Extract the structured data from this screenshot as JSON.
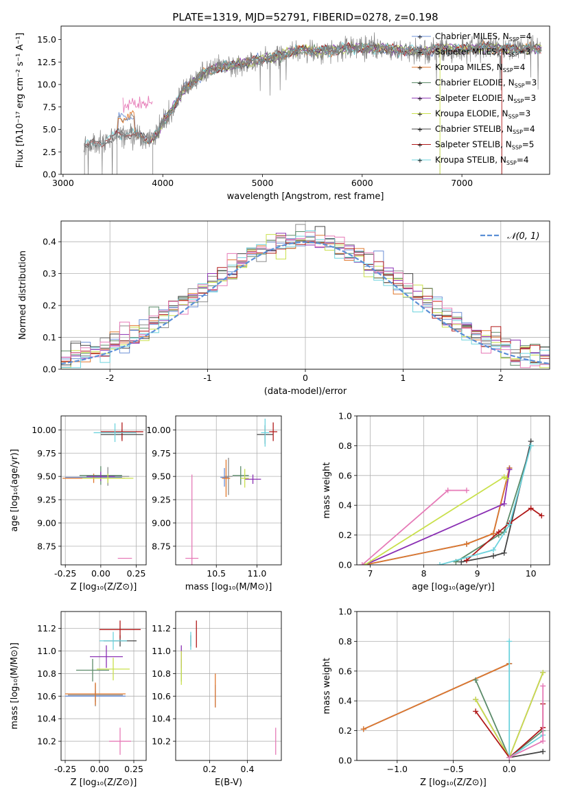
{
  "colors": {
    "Chabrier MILES": "#6b8fd6",
    "Salpeter MILES": "#8a8a8a",
    "Kroupa MILES": "#e0772c",
    "Chabrier ELODIE": "#5a8a68",
    "Salpeter ELODIE": "#8a2fb3",
    "Kroupa ELODIE": "#c9e04b",
    "Chabrier STELIB": "#444444",
    "Salpeter STELIB": "#b01818",
    "Kroupa STELIB": "#6dd3dd",
    "Normal": "#5b8fd6",
    "pink": "#e67ab7",
    "grid": "#b0b0b0"
  },
  "chart_data": [
    {
      "id": "spectrum",
      "type": "line",
      "title": "PLATE=1319, MJD=52791, FIBERID=0278, z=0.198",
      "xlabel": "wavelength [Angstrom, rest frame]",
      "ylabel": "Flux [fλ10⁻¹⁷ erg cm⁻² s⁻¹ A⁻¹]",
      "xlim": [
        2980,
        7880
      ],
      "ylim": [
        0,
        16.5
      ],
      "xticks": [
        3000,
        4000,
        5000,
        6000,
        7000
      ],
      "yticks": [
        0.0,
        2.5,
        5.0,
        7.5,
        10.0,
        12.5,
        15.0
      ],
      "grid": false,
      "legend_position": "top-right",
      "legend": [
        {
          "name": "Chabrier MILES",
          "nssp": "4"
        },
        {
          "name": "Salpeter MILES",
          "nssp": "3"
        },
        {
          "name": "Kroupa MILES",
          "nssp": "4"
        },
        {
          "name": "Chabrier ELODIE",
          "nssp": "3"
        },
        {
          "name": "Salpeter ELODIE",
          "nssp": "3"
        },
        {
          "name": "Kroupa ELODIE",
          "nssp": "3"
        },
        {
          "name": "Chabrier STELIB",
          "nssp": "4"
        },
        {
          "name": "Salpeter STELIB",
          "nssp": "5"
        },
        {
          "name": "Kroupa STELIB",
          "nssp": "4"
        }
      ],
      "continuum": {
        "wavelength": [
          3210,
          3400,
          3550,
          3700,
          3850,
          3950,
          4000,
          4100,
          4200,
          4400,
          4600,
          4800,
          5000,
          5200,
          5400,
          5600,
          5800,
          6000,
          6200,
          6400,
          6600,
          6800,
          7000,
          7200,
          7400,
          7800
        ],
        "flux": [
          3.2,
          3.6,
          4.4,
          4.5,
          3.8,
          4.5,
          5.8,
          7.3,
          9.3,
          11.2,
          12.0,
          12.3,
          12.8,
          13.3,
          13.9,
          13.7,
          14.0,
          14.1,
          14.0,
          13.8,
          13.7,
          14.0,
          13.9,
          14.2,
          14.0,
          14.0
        ]
      }
    },
    {
      "id": "residuals",
      "type": "histogram",
      "xlabel": "(data-model)/error",
      "ylabel": "Normed distribution",
      "xlim": [
        -2.5,
        2.5
      ],
      "ylim": [
        0,
        0.465
      ],
      "xticks": [
        -2,
        -1,
        0,
        1,
        2
      ],
      "yticks": [
        0.0,
        0.1,
        0.2,
        0.3,
        0.4
      ],
      "grid": true,
      "legend_position": "top-right",
      "normal_label": "𝒩(0, 1)",
      "bin_width": 0.1
    },
    {
      "id": "age-vs-Z",
      "type": "errorbar",
      "xlabel": "Z [log₁₀(Z/Z⊙)]",
      "ylabel": "age  [log₁₀(age/yr)]",
      "xlim": [
        -0.28,
        0.32
      ],
      "ylim": [
        8.55,
        10.15
      ],
      "xticks": [
        -0.25,
        0.0,
        0.25
      ],
      "yticks": [
        8.75,
        9.0,
        9.25,
        9.5,
        9.75,
        10.0
      ],
      "points": [
        {
          "x": -0.05,
          "y": 9.49,
          "xe": 0.2,
          "ye": 0.0,
          "c": "Chabrier MILES"
        },
        {
          "x": 0.05,
          "y": 9.5,
          "xe": 0.15,
          "ye": 0.1,
          "c": "Salpeter MILES"
        },
        {
          "x": -0.05,
          "y": 9.48,
          "xe": 0.22,
          "ye": 0.05,
          "c": "Kroupa MILES"
        },
        {
          "x": 0.0,
          "y": 9.51,
          "xe": 0.15,
          "ye": 0.1,
          "c": "Chabrier ELODIE"
        },
        {
          "x": 0.0,
          "y": 9.5,
          "xe": 0.1,
          "ye": 0.05,
          "c": "Salpeter ELODIE"
        },
        {
          "x": 0.05,
          "y": 9.48,
          "xe": 0.18,
          "ye": 0.05,
          "c": "Kroupa ELODIE"
        },
        {
          "x": 0.15,
          "y": 9.95,
          "xe": 0.15,
          "ye": 0.05,
          "c": "Chabrier STELIB"
        },
        {
          "x": 0.15,
          "y": 9.98,
          "xe": 0.15,
          "ye": 0.1,
          "c": "Salpeter STELIB"
        },
        {
          "x": 0.1,
          "y": 9.97,
          "xe": 0.15,
          "ye": 0.1,
          "c": "Kroupa STELIB"
        },
        {
          "x": 0.17,
          "y": 8.62,
          "xe": 0.05,
          "ye": 0.0,
          "c": "pink"
        }
      ]
    },
    {
      "id": "age-vs-mass",
      "type": "errorbar",
      "xlabel": "mass [log₁₀(M/M⊙)]",
      "ylabel": "",
      "xlim": [
        10.0,
        11.3
      ],
      "ylim": [
        8.55,
        10.15
      ],
      "xticks": [
        10.5,
        11.0
      ],
      "yticks": [
        8.75,
        9.0,
        9.25,
        9.5,
        9.75,
        10.0
      ],
      "points": [
        {
          "x": 10.6,
          "y": 9.49,
          "xe": 0.05,
          "ye": 0.1,
          "c": "Chabrier MILES"
        },
        {
          "x": 10.65,
          "y": 9.5,
          "xe": 0.05,
          "ye": 0.2,
          "c": "Salpeter MILES"
        },
        {
          "x": 10.62,
          "y": 9.48,
          "xe": 0.05,
          "ye": 0.2,
          "c": "Kroupa MILES"
        },
        {
          "x": 10.8,
          "y": 9.51,
          "xe": 0.1,
          "ye": 0.1,
          "c": "Chabrier ELODIE"
        },
        {
          "x": 10.95,
          "y": 9.47,
          "xe": 0.1,
          "ye": 0.05,
          "c": "Salpeter ELODIE"
        },
        {
          "x": 10.85,
          "y": 9.48,
          "xe": 0.05,
          "ye": 0.1,
          "c": "Kroupa ELODIE"
        },
        {
          "x": 11.1,
          "y": 9.95,
          "xe": 0.1,
          "ye": 0.1,
          "c": "Chabrier STELIB"
        },
        {
          "x": 11.2,
          "y": 9.98,
          "xe": 0.05,
          "ye": 0.1,
          "c": "Salpeter STELIB"
        },
        {
          "x": 11.1,
          "y": 9.97,
          "xe": 0.05,
          "ye": 0.15,
          "c": "Kroupa STELIB"
        },
        {
          "x": 10.2,
          "y": 8.62,
          "xe": 0.08,
          "ye": 0.9,
          "c": "pink"
        }
      ]
    },
    {
      "id": "weights-vs-age",
      "type": "line",
      "xlabel": "age  [log₁₀(age/yr)]",
      "ylabel": "mass weight",
      "xlim": [
        6.75,
        10.35
      ],
      "ylim": [
        0,
        1.0
      ],
      "xticks": [
        7,
        8,
        9,
        10
      ],
      "yticks": [
        0.0,
        0.2,
        0.4,
        0.6,
        0.8,
        1.0
      ],
      "grid": true,
      "series": [
        {
          "c": "Chabrier MILES",
          "x": [
            6.9,
            8.8,
            9.3,
            9.6
          ],
          "y": [
            0.0,
            0.14,
            0.21,
            0.65
          ]
        },
        {
          "c": "Salpeter MILES",
          "x": [
            6.9,
            8.8,
            9.3,
            9.6
          ],
          "y": [
            0.0,
            0.14,
            0.21,
            0.65
          ]
        },
        {
          "c": "Kroupa MILES",
          "x": [
            6.9,
            8.8,
            9.3,
            9.6
          ],
          "y": [
            0.0,
            0.14,
            0.21,
            0.65
          ]
        },
        {
          "c": "Chabrier ELODIE",
          "x": [
            8.6,
            9.4,
            9.5,
            10.0
          ],
          "y": [
            0.02,
            0.2,
            0.22,
            0.8
          ]
        },
        {
          "c": "Salpeter ELODIE",
          "x": [
            6.9,
            9.5,
            9.6
          ],
          "y": [
            0.0,
            0.41,
            0.64
          ]
        },
        {
          "c": "Kroupa ELODIE",
          "x": [
            6.9,
            9.5,
            9.55
          ],
          "y": [
            0.0,
            0.59,
            0.58
          ]
        },
        {
          "c": "Chabrier STELIB",
          "x": [
            8.7,
            9.3,
            9.5,
            10.0
          ],
          "y": [
            0.02,
            0.06,
            0.08,
            0.83
          ]
        },
        {
          "c": "Salpeter STELIB",
          "x": [
            8.8,
            9.4,
            9.6,
            10.0,
            10.2
          ],
          "y": [
            0.03,
            0.22,
            0.28,
            0.38,
            0.33
          ]
        },
        {
          "c": "Kroupa STELIB",
          "x": [
            8.3,
            9.3,
            9.6,
            10.0
          ],
          "y": [
            0.0,
            0.1,
            0.27,
            0.8
          ]
        },
        {
          "c": "pink",
          "x": [
            6.85,
            8.45,
            8.8
          ],
          "y": [
            0.0,
            0.5,
            0.5
          ]
        }
      ]
    },
    {
      "id": "mass-vs-Z",
      "type": "errorbar",
      "xlabel": "Z [log₁₀(Z/Z⊙)]",
      "ylabel": "mass [log₁₀(M/M⊙)]",
      "xlim": [
        -0.28,
        0.34
      ],
      "ylim": [
        10.03,
        11.35
      ],
      "xticks": [
        -0.25,
        0.0,
        0.25
      ],
      "yticks": [
        10.2,
        10.4,
        10.6,
        10.8,
        11.0,
        11.2
      ],
      "points": [
        {
          "x": -0.03,
          "y": 10.6,
          "xe": 0.22,
          "ye": 0.05,
          "c": "Chabrier MILES"
        },
        {
          "x": -0.03,
          "y": 10.61,
          "xe": 0.2,
          "ye": 0.1,
          "c": "Salpeter MILES"
        },
        {
          "x": -0.03,
          "y": 10.62,
          "xe": 0.22,
          "ye": 0.1,
          "c": "Kroupa MILES"
        },
        {
          "x": -0.05,
          "y": 10.83,
          "xe": 0.12,
          "ye": 0.1,
          "c": "Chabrier ELODIE"
        },
        {
          "x": 0.05,
          "y": 10.95,
          "xe": 0.12,
          "ye": 0.1,
          "c": "Salpeter ELODIE"
        },
        {
          "x": 0.1,
          "y": 10.84,
          "xe": 0.12,
          "ye": 0.1,
          "c": "Kroupa ELODIE"
        },
        {
          "x": 0.15,
          "y": 11.09,
          "xe": 0.12,
          "ye": 0.05,
          "c": "Chabrier STELIB"
        },
        {
          "x": 0.15,
          "y": 11.19,
          "xe": 0.15,
          "ye": 0.08,
          "c": "Salpeter STELIB"
        },
        {
          "x": 0.1,
          "y": 11.09,
          "xe": 0.1,
          "ye": 0.08,
          "c": "Kroupa STELIB"
        },
        {
          "x": 0.15,
          "y": 10.2,
          "xe": 0.08,
          "ye": 0.12,
          "c": "pink"
        }
      ]
    },
    {
      "id": "mass-vs-ebv",
      "type": "errorbar",
      "xlabel": "E(B-V)",
      "ylabel": "",
      "xlim": [
        0.02,
        0.58
      ],
      "ylim": [
        10.03,
        11.35
      ],
      "xticks": [
        0.2,
        0.4
      ],
      "yticks": [
        10.2,
        10.4,
        10.6,
        10.8,
        11.0,
        11.2
      ],
      "points": [
        {
          "x": 0.23,
          "y": 10.6,
          "xe": 0.0,
          "ye": 0.1,
          "c": "Chabrier MILES"
        },
        {
          "x": 0.23,
          "y": 10.65,
          "xe": 0.0,
          "ye": 0.15,
          "c": "Kroupa MILES"
        },
        {
          "x": 0.05,
          "y": 10.83,
          "xe": 0.0,
          "ye": 0.1,
          "c": "Chabrier ELODIE"
        },
        {
          "x": 0.05,
          "y": 10.95,
          "xe": 0.0,
          "ye": 0.1,
          "c": "Salpeter ELODIE"
        },
        {
          "x": 0.05,
          "y": 10.85,
          "xe": 0.0,
          "ye": 0.15,
          "c": "Kroupa ELODIE"
        },
        {
          "x": 0.1,
          "y": 11.09,
          "xe": 0.0,
          "ye": 0.05,
          "c": "Chabrier STELIB"
        },
        {
          "x": 0.13,
          "y": 11.15,
          "xe": 0.0,
          "ye": 0.12,
          "c": "Salpeter STELIB"
        },
        {
          "x": 0.1,
          "y": 11.09,
          "xe": 0.0,
          "ye": 0.08,
          "c": "Kroupa STELIB"
        },
        {
          "x": 0.55,
          "y": 10.2,
          "xe": 0.0,
          "ye": 0.12,
          "c": "pink"
        }
      ]
    },
    {
      "id": "weights-vs-Z",
      "type": "line",
      "xlabel": "Z [log₁₀(Z/Z⊙)]",
      "ylabel": "mass weight",
      "xlim": [
        -1.36,
        0.36
      ],
      "ylim": [
        0,
        1.0
      ],
      "xticks": [
        -1.0,
        -0.5,
        0.0
      ],
      "yticks": [
        0.0,
        0.2,
        0.4,
        0.6,
        0.8,
        1.0
      ],
      "grid": true,
      "series": [
        {
          "c": "Chabrier MILES",
          "x": [
            -1.3,
            0.0
          ],
          "y": [
            0.21,
            0.65
          ]
        },
        {
          "c": "Salpeter MILES",
          "x": [
            -1.3,
            0.0
          ],
          "y": [
            0.21,
            0.65
          ]
        },
        {
          "c": "Kroupa MILES",
          "x": [
            -1.3,
            0.0
          ],
          "y": [
            0.21,
            0.65
          ]
        },
        {
          "c": "Chabrier ELODIE",
          "x": [
            -0.3,
            0.0,
            0.3
          ],
          "y": [
            0.54,
            0.02,
            0.2
          ]
        },
        {
          "c": "Salpeter ELODIE",
          "x": [
            -0.3,
            0.0,
            0.3
          ],
          "y": [
            0.41,
            0.02,
            0.59
          ]
        },
        {
          "c": "Kroupa ELODIE",
          "x": [
            -0.3,
            0.0,
            0.3
          ],
          "y": [
            0.41,
            0.02,
            0.59
          ]
        },
        {
          "c": "Chabrier STELIB",
          "x": [
            0.0,
            0.3
          ],
          "y": [
            0.02,
            0.06
          ]
        },
        {
          "c": "Salpeter STELIB",
          "x": [
            -0.3,
            0.0,
            0.3,
            0.3
          ],
          "y": [
            0.33,
            0.02,
            0.22,
            0.38
          ]
        },
        {
          "c": "Kroupa STELIB",
          "x": [
            0.0,
            0.0,
            0.3
          ],
          "y": [
            0.8,
            0.02,
            0.17
          ]
        },
        {
          "c": "pink",
          "x": [
            0.0,
            0.3,
            0.3
          ],
          "y": [
            0.02,
            0.13,
            0.5
          ]
        }
      ]
    }
  ]
}
